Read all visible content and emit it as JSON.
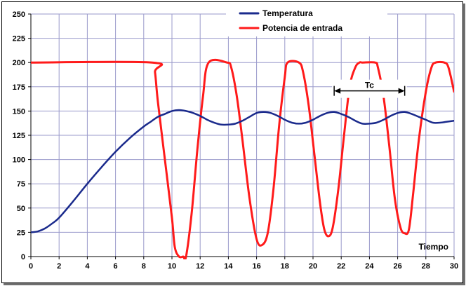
{
  "chart_data": {
    "type": "line",
    "xlabel": "Tiempo",
    "ylabel": "",
    "xlim": [
      0,
      30
    ],
    "ylim": [
      0,
      250
    ],
    "xticks": [
      0,
      2,
      4,
      6,
      8,
      10,
      12,
      14,
      16,
      18,
      20,
      22,
      24,
      26,
      28,
      30
    ],
    "yticks": [
      0,
      25,
      50,
      75,
      100,
      125,
      150,
      175,
      200,
      225,
      250
    ],
    "grid": true,
    "legend_position": "top-center",
    "series": [
      {
        "name": "Temperatura",
        "color": "#1a2a8c",
        "x": [
          0,
          0.5,
          1,
          1.5,
          2,
          3,
          4,
          5,
          6,
          7,
          8,
          8.5,
          9,
          9.5,
          10,
          10.5,
          11,
          11.5,
          12,
          12.5,
          13,
          13.5,
          14,
          14.5,
          15,
          15.5,
          16,
          16.5,
          17,
          17.5,
          18,
          18.5,
          19,
          19.5,
          20,
          20.5,
          21,
          21.5,
          22,
          22.5,
          23,
          23.5,
          24,
          24.5,
          25,
          25.5,
          26,
          26.5,
          27,
          27.5,
          28,
          28.5,
          29,
          29.5,
          30
        ],
        "y": [
          25,
          26,
          29,
          34,
          40,
          57,
          75,
          92,
          108,
          122,
          134,
          139,
          144,
          147,
          150,
          151,
          150,
          148,
          145,
          141,
          138,
          136,
          136,
          137,
          140,
          144,
          148,
          149,
          148,
          145,
          141,
          138,
          137,
          138,
          141,
          145,
          148,
          149,
          147,
          144,
          140,
          137,
          137,
          138,
          141,
          145,
          148,
          149,
          147,
          144,
          141,
          138,
          138,
          139,
          140
        ]
      },
      {
        "name": "Potencia de entrada",
        "color": "#ff1a1a",
        "x": [
          0,
          8.6,
          8.8,
          9,
          9.5,
          10,
          10.2,
          10.5,
          10.8,
          11,
          11.4,
          11.8,
          12.2,
          12.6,
          13.9,
          14.2,
          14.6,
          15,
          15.5,
          16,
          16.4,
          16.8,
          17.2,
          17.6,
          18,
          18.2,
          19,
          19.3,
          19.7,
          20.1,
          20.5,
          20.8,
          21.1,
          21.4,
          21.8,
          22.2,
          22.6,
          23,
          23.3,
          23.5,
          24.4,
          24.6,
          25,
          25.4,
          25.8,
          26.2,
          26.5,
          26.8,
          27.1,
          27.5,
          28,
          28.4,
          28.7,
          29.3,
          29.6,
          30
        ],
        "y": [
          200,
          200,
          190,
          160,
          100,
          40,
          10,
          0,
          0,
          0,
          45,
          110,
          165,
          200,
          200,
          195,
          165,
          120,
          60,
          18,
          12,
          25,
          70,
          135,
          185,
          200,
          200,
          190,
          155,
          105,
          55,
          28,
          21,
          30,
          70,
          125,
          175,
          195,
          200,
          200,
          200,
          195,
          165,
          115,
          60,
          30,
          24,
          28,
          65,
          120,
          170,
          195,
          200,
          200,
          195,
          170
        ]
      }
    ],
    "annotations": [
      {
        "text": "Tc",
        "x_start": 21.5,
        "x_end": 26.5,
        "y": 165
      }
    ]
  },
  "colors": {
    "grid": "#9a9acb",
    "axis": "#000000",
    "background": "#ffffff"
  }
}
